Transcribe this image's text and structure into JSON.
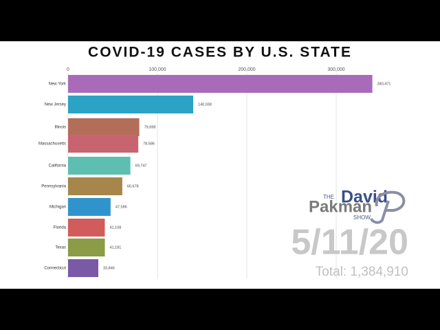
{
  "chart_data": {
    "type": "hbar",
    "title": "COVID-19 CASES BY U.S. STATE",
    "categories": [
      "New York",
      "New Jersey",
      "Illinois",
      "Massachusetts",
      "California",
      "Pennsylvania",
      "Michigan",
      "Florida",
      "Texas",
      "Connecticut"
    ],
    "values": [
      340471,
      140038,
      79698,
      78586,
      69747,
      60678,
      47586,
      41108,
      41181,
      33846
    ],
    "value_labels": [
      "340,471",
      "140,038",
      "79,698",
      "78,586",
      "69,747",
      "60,678",
      "47,586",
      "41,108",
      "41,181",
      "33,846"
    ],
    "colors": [
      "#a96bb9",
      "#2aa3c4",
      "#b36e5a",
      "#c8646f",
      "#5cbfb1",
      "#a6864b",
      "#3094cc",
      "#d25c5c",
      "#8b9b46",
      "#7a5aa6"
    ],
    "xlim": [
      0,
      385000
    ],
    "xticks": [
      0,
      {
        "value": 100000,
        "label": "100,000"
      },
      {
        "value": 200000,
        "label": "200,000"
      },
      {
        "value": 300000,
        "label": "300,000"
      }
    ],
    "grid": true,
    "annotations": [
      "5/11/20",
      "Total: 1,384,910"
    ]
  },
  "logo": {
    "small_top": "THE",
    "first": "David",
    "second": "Pakman",
    "small_bottom": "SHOW"
  }
}
